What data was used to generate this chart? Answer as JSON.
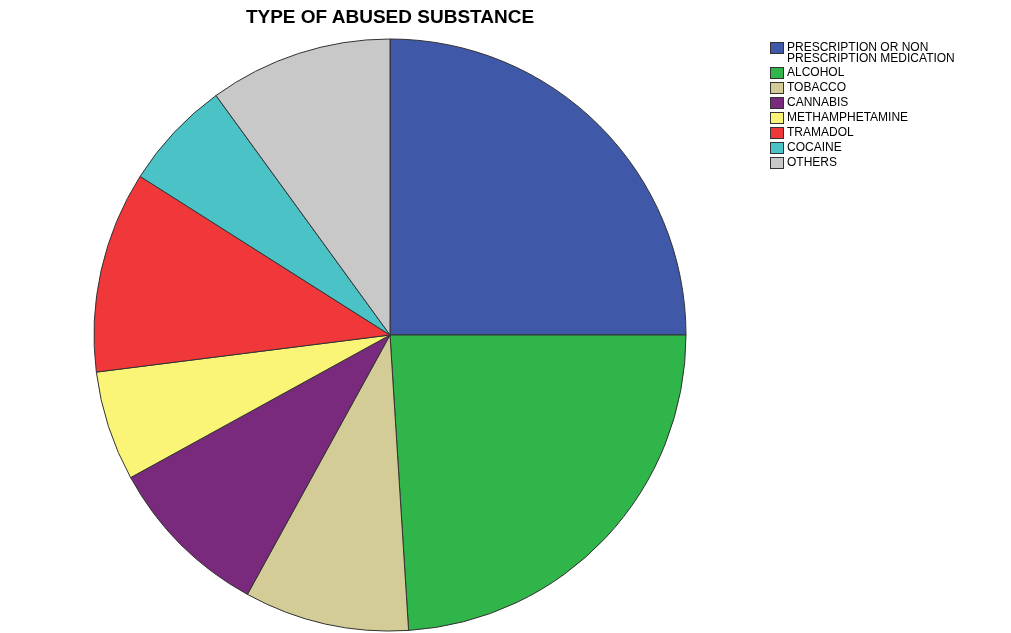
{
  "chart_data": {
    "type": "pie",
    "title": "TYPE OF ABUSED SUBSTANCE",
    "categories": [
      "PRESCRIPTION OR NON PRESCRIPTION MEDICATION",
      "ALCOHOL",
      "TOBACCO",
      "CANNABIS",
      "METHAMPHETAMINE",
      "TRAMADOL",
      "COCAINE",
      "OTHERS"
    ],
    "values": [
      25,
      24,
      9,
      9,
      6,
      11,
      6,
      10
    ],
    "colors": [
      "#3f58a8",
      "#2fb54a",
      "#d3cc96",
      "#7a2a7d",
      "#fbf577",
      "#f0373a",
      "#4bc2c6",
      "#c8c8c8"
    ],
    "legend": "top right"
  }
}
